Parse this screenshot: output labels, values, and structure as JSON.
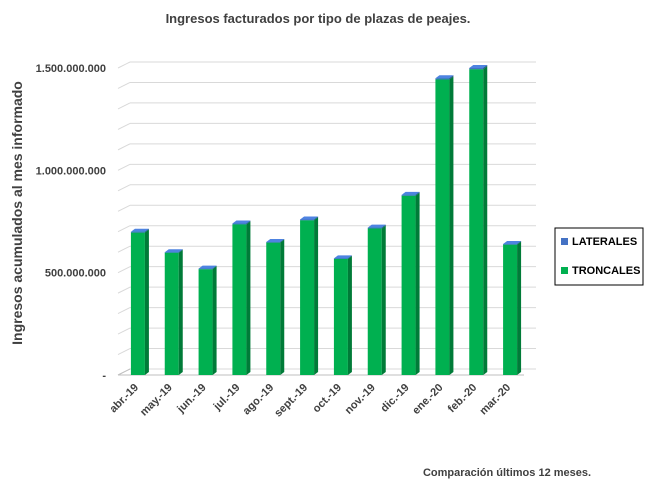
{
  "chart_data": {
    "type": "bar",
    "stacked": true,
    "style": "3d",
    "title": "Ingresos facturados por tipo de plazas de peajes.",
    "ylabel": "Ingresos acumulados al mes informado",
    "xlabel": "",
    "ylim": [
      0,
      1500000000
    ],
    "yticks": [
      0,
      500000000,
      1000000000,
      1500000000
    ],
    "ytick_labels": [
      "-",
      "500.000.000",
      "1.000.000.000",
      "1.500.000.000"
    ],
    "grid": true,
    "legend_position": "right",
    "categories": [
      "abr.-19",
      "may.-19",
      "jun.-19",
      "jul.-19",
      "ago.-19",
      "sept.-19",
      "oct.-19",
      "nov.-19",
      "dic.-19",
      "ene.-20",
      "feb.-20",
      "mar.-20"
    ],
    "series": [
      {
        "name": "LATERALES",
        "color": "#4472c4",
        "values": [
          4000000,
          3000000,
          3000000,
          4000000,
          3000000,
          4000000,
          3000000,
          4000000,
          4000000,
          6000000,
          6000000,
          3000000
        ]
      },
      {
        "name": "TRONCALES",
        "color": "#00b050",
        "values": [
          696000000,
          597000000,
          517000000,
          736000000,
          647000000,
          756000000,
          567000000,
          716000000,
          876000000,
          1444000000,
          1494000000,
          637000000
        ]
      }
    ],
    "footnote": "Comparación  últimos  12 meses."
  }
}
